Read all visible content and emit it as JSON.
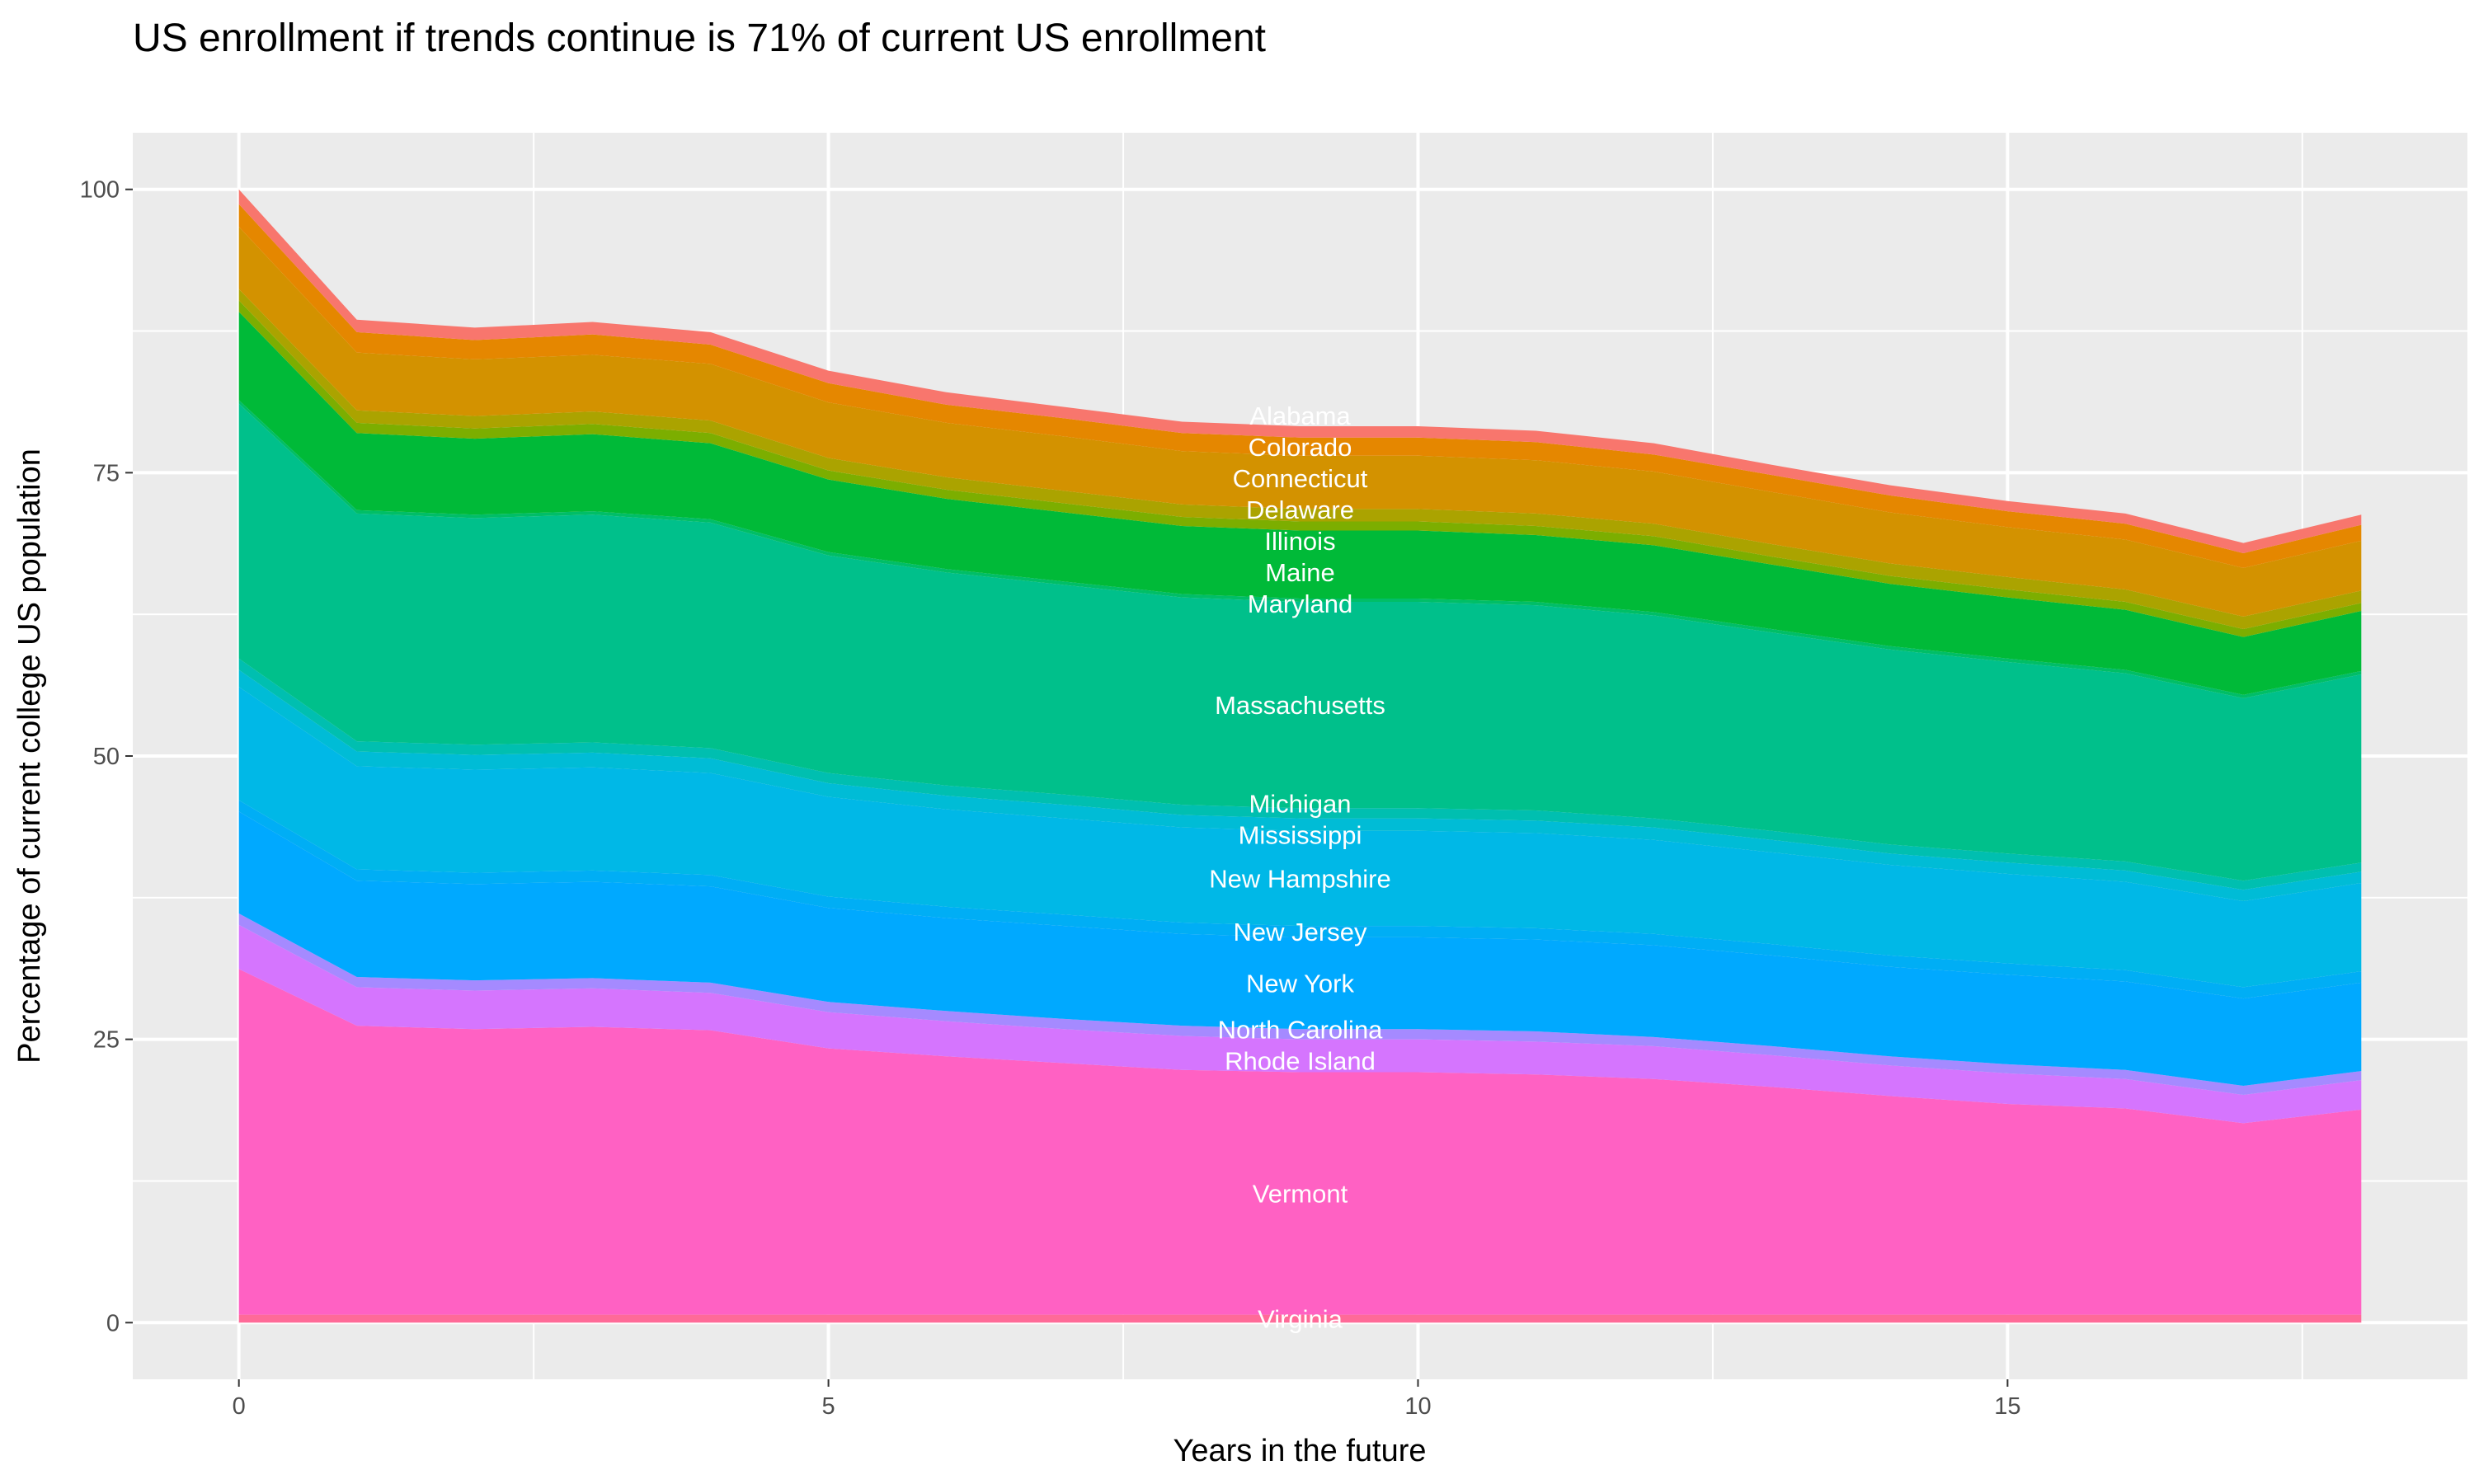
{
  "chart_data": {
    "type": "area",
    "stacked": true,
    "title": "US enrollment if trends continue is 71% of current US enrollment",
    "xlabel": "Years in the future",
    "ylabel": "Percentage of current college US population",
    "xlim": [
      -0.9,
      18.9
    ],
    "ylim": [
      -5,
      105
    ],
    "x_ticks": [
      0,
      5,
      10,
      15
    ],
    "y_ticks": [
      0,
      25,
      50,
      75,
      100
    ],
    "grid": true,
    "legend": "none",
    "label_x": 9,
    "x": [
      0,
      1,
      2,
      3,
      4,
      5,
      6,
      7,
      8,
      9,
      10,
      11,
      12,
      13,
      14,
      15,
      16,
      17,
      18
    ],
    "series": [
      {
        "name": "Virginia",
        "color": "#FF6A98",
        "values": [
          0.7,
          0.7,
          0.7,
          0.7,
          0.7,
          0.7,
          0.7,
          0.7,
          0.7,
          0.7,
          0.7,
          0.7,
          0.7,
          0.7,
          0.7,
          0.7,
          0.7,
          0.7,
          0.7
        ]
      },
      {
        "name": "Vermont",
        "color": "#FF61C3",
        "values": [
          30.5,
          25.5,
          25.2,
          25.4,
          25.1,
          23.5,
          22.8,
          22.2,
          21.6,
          21.4,
          21.4,
          21.2,
          20.8,
          20.1,
          19.3,
          18.6,
          18.2,
          16.9,
          18.1
        ]
      },
      {
        "name": "Rhode Island",
        "color": "#D575FE",
        "values": [
          3.9,
          3.4,
          3.4,
          3.4,
          3.3,
          3.2,
          3.1,
          3.0,
          3.0,
          2.9,
          2.9,
          2.9,
          2.9,
          2.8,
          2.7,
          2.7,
          2.6,
          2.5,
          2.6
        ]
      },
      {
        "name": "North Carolina",
        "color": "#A58AFF",
        "values": [
          1.0,
          0.9,
          0.9,
          0.9,
          0.9,
          0.9,
          0.9,
          0.9,
          0.9,
          0.9,
          0.9,
          0.9,
          0.8,
          0.8,
          0.8,
          0.8,
          0.8,
          0.8,
          0.8
        ]
      },
      {
        "name": "New York",
        "color": "#00A9FF",
        "values": [
          9.0,
          8.5,
          8.5,
          8.5,
          8.5,
          8.3,
          8.2,
          8.2,
          8.1,
          8.1,
          8.1,
          8.1,
          8.1,
          8.0,
          7.9,
          7.9,
          7.8,
          7.7,
          7.8
        ]
      },
      {
        "name": "New Jersey",
        "color": "#00AEF5",
        "values": [
          1.0,
          1.0,
          1.0,
          1.0,
          1.0,
          1.0,
          1.0,
          1.0,
          1.0,
          1.0,
          1.0,
          1.0,
          1.0,
          1.0,
          1.0,
          1.0,
          1.0,
          1.0,
          1.0
        ]
      },
      {
        "name": "New Hampshire",
        "color": "#00B8E7",
        "values": [
          10.0,
          9.1,
          9.1,
          9.1,
          9.0,
          8.8,
          8.6,
          8.5,
          8.4,
          8.4,
          8.4,
          8.4,
          8.3,
          8.1,
          8.0,
          7.9,
          7.8,
          7.6,
          7.8
        ]
      },
      {
        "name": "Mississippi",
        "color": "#00BCD6",
        "values": [
          1.5,
          1.3,
          1.3,
          1.3,
          1.3,
          1.2,
          1.2,
          1.2,
          1.1,
          1.1,
          1.1,
          1.1,
          1.1,
          1.1,
          1.0,
          1.0,
          1.0,
          1.0,
          1.0
        ]
      },
      {
        "name": "Michigan",
        "color": "#00BFB0",
        "values": [
          1.0,
          0.9,
          0.9,
          0.9,
          0.9,
          0.9,
          0.9,
          0.9,
          0.9,
          0.9,
          0.9,
          0.9,
          0.8,
          0.8,
          0.8,
          0.8,
          0.8,
          0.8,
          0.8
        ]
      },
      {
        "name": "Massachusetts",
        "color": "#00C08B",
        "values": [
          22.5,
          20.1,
          20.0,
          20.1,
          19.9,
          19.2,
          18.8,
          18.5,
          18.3,
          18.2,
          18.2,
          18.1,
          17.9,
          17.5,
          17.2,
          16.9,
          16.6,
          16.1,
          16.6
        ]
      },
      {
        "name": "Maryland",
        "color": "#00BE67",
        "values": [
          0.3,
          0.3,
          0.3,
          0.3,
          0.3,
          0.3,
          0.3,
          0.3,
          0.3,
          0.3,
          0.3,
          0.3,
          0.3,
          0.3,
          0.3,
          0.3,
          0.3,
          0.3,
          0.3
        ]
      },
      {
        "name": "Maine",
        "color": "#00BA38",
        "values": [
          7.8,
          6.8,
          6.7,
          6.8,
          6.7,
          6.4,
          6.2,
          6.1,
          6.0,
          6.0,
          6.0,
          5.9,
          5.9,
          5.7,
          5.5,
          5.4,
          5.3,
          5.1,
          5.3
        ]
      },
      {
        "name": "Illinois",
        "color": "#7CAE00",
        "values": [
          1.0,
          0.9,
          0.9,
          0.9,
          0.9,
          0.8,
          0.8,
          0.8,
          0.8,
          0.8,
          0.8,
          0.8,
          0.8,
          0.7,
          0.7,
          0.7,
          0.7,
          0.7,
          0.7
        ]
      },
      {
        "name": "Delaware",
        "color": "#ABA300",
        "values": [
          1.0,
          1.1,
          1.1,
          1.1,
          1.1,
          1.1,
          1.1,
          1.1,
          1.1,
          1.1,
          1.1,
          1.1,
          1.1,
          1.1,
          1.1,
          1.1,
          1.1,
          1.1,
          1.1
        ]
      },
      {
        "name": "Connecticut",
        "color": "#D39200",
        "values": [
          5.5,
          5.1,
          5.0,
          5.0,
          5.0,
          4.9,
          4.8,
          4.8,
          4.7,
          4.7,
          4.7,
          4.7,
          4.6,
          4.6,
          4.5,
          4.4,
          4.4,
          4.3,
          4.4
        ]
      },
      {
        "name": "Colorado",
        "color": "#E58700",
        "values": [
          2.0,
          1.8,
          1.7,
          1.8,
          1.7,
          1.7,
          1.6,
          1.6,
          1.6,
          1.6,
          1.6,
          1.6,
          1.5,
          1.5,
          1.5,
          1.4,
          1.4,
          1.3,
          1.4
        ]
      },
      {
        "name": "Alabama",
        "color": "#F8766D",
        "values": [
          1.3,
          1.1,
          1.1,
          1.1,
          1.1,
          1.1,
          1.1,
          1.0,
          1.0,
          1.0,
          1.0,
          1.0,
          1.0,
          0.9,
          0.9,
          0.9,
          0.9,
          0.9,
          0.9
        ]
      }
    ]
  }
}
